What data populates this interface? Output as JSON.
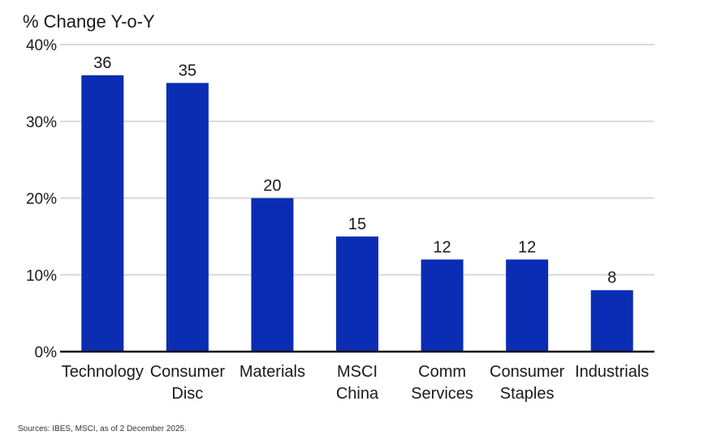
{
  "chart_data": {
    "type": "bar",
    "ylabel": "% Change Y-o-Y",
    "categories": [
      [
        "Technology"
      ],
      [
        "Consumer",
        "Disc"
      ],
      [
        "Materials"
      ],
      [
        "MSCI",
        "China"
      ],
      [
        "Comm",
        "Services"
      ],
      [
        "Consumer",
        "Staples"
      ],
      [
        "Industrials"
      ]
    ],
    "values": [
      36,
      35,
      20,
      15,
      12,
      12,
      8
    ],
    "data_labels": [
      "36",
      "35",
      "20",
      "15",
      "12",
      "12",
      "8"
    ],
    "ylim": [
      0,
      40
    ],
    "yticks": [
      0,
      10,
      20,
      30,
      40
    ],
    "ytick_labels": [
      "0%",
      "10%",
      "20%",
      "30%",
      "40%"
    ],
    "grid": true,
    "bar_color": "#0a2db4",
    "source": "Sources: IBES, MSCI, as of 2 December 2025."
  }
}
